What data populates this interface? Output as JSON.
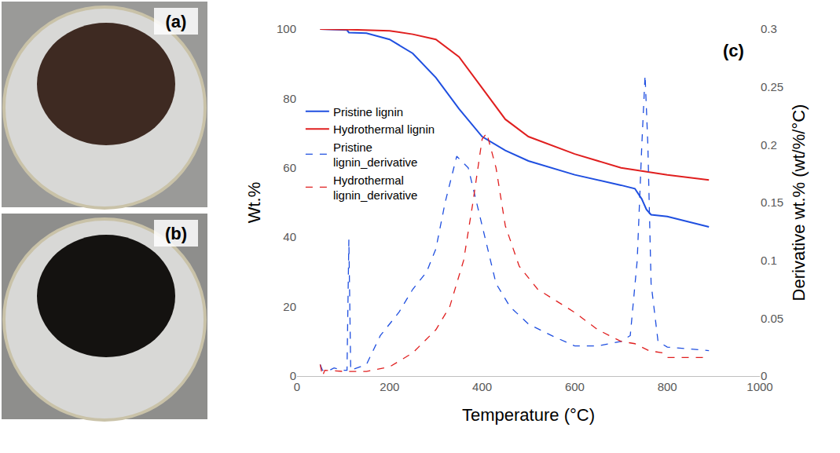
{
  "panels": [
    {
      "label": "(a)"
    },
    {
      "label": "(b)"
    }
  ],
  "chart_data": {
    "type": "line",
    "annotations": [
      "(c)"
    ],
    "x_label": "Temperature (°C)",
    "y_label": "Wt.%",
    "y2_label": "Derivative wt.% (wt/%/°C)",
    "xlim": [
      0,
      1000
    ],
    "xticks": [
      0,
      200,
      400,
      600,
      800,
      1000
    ],
    "ylim": [
      0,
      100
    ],
    "yticks": [
      0,
      20,
      40,
      60,
      80,
      100
    ],
    "y2lim": [
      0,
      0.3
    ],
    "y2ticks": [
      0,
      0.05,
      0.1,
      0.15,
      0.2,
      0.25,
      0.3
    ],
    "grid": false,
    "legend": "left",
    "series": [
      {
        "name": "Pristine lignin",
        "color": "#1f4fe0",
        "line_style": "solid",
        "x": [
          50,
          100,
          108,
          112,
          150,
          200,
          250,
          300,
          350,
          400,
          450,
          500,
          600,
          700,
          730,
          745,
          755,
          765,
          800,
          890
        ],
        "values": [
          100,
          99.8,
          99.7,
          99,
          98.8,
          97,
          93,
          86,
          77,
          69,
          65,
          62,
          58,
          55,
          54,
          51,
          48,
          46.5,
          46,
          43
        ]
      },
      {
        "name": "Hydrothermal lignin",
        "color": "#e01f1f",
        "line_style": "solid",
        "x": [
          50,
          100,
          200,
          250,
          300,
          350,
          400,
          450,
          500,
          600,
          700,
          800,
          890
        ],
        "values": [
          100,
          99.9,
          99.5,
          98.5,
          97,
          92,
          83,
          74,
          69,
          64,
          60,
          58,
          56.5
        ]
      },
      {
        "name": "Pristine lignin_derivative",
        "color": "#1f4fe0",
        "line_style": "dashed",
        "axis": "y2",
        "x": [
          50,
          55,
          70,
          80,
          100,
          108,
          112,
          116,
          150,
          180,
          220,
          250,
          280,
          300,
          320,
          345,
          370,
          400,
          430,
          460,
          500,
          550,
          600,
          650,
          700,
          720,
          735,
          745,
          752,
          758,
          765,
          780,
          800,
          890
        ],
        "values": [
          0.01,
          0.005,
          0.005,
          0.007,
          0.005,
          0.005,
          0.118,
          0.005,
          0.01,
          0.035,
          0.055,
          0.075,
          0.09,
          0.11,
          0.15,
          0.19,
          0.18,
          0.13,
          0.08,
          0.06,
          0.045,
          0.035,
          0.026,
          0.026,
          0.03,
          0.035,
          0.1,
          0.2,
          0.26,
          0.2,
          0.08,
          0.03,
          0.025,
          0.022
        ]
      },
      {
        "name": "Hydrothermal lignin_derivative",
        "color": "#e01f1f",
        "line_style": "dashed",
        "axis": "y2",
        "x": [
          50,
          55,
          60,
          100,
          150,
          200,
          250,
          300,
          330,
          360,
          380,
          400,
          410,
          430,
          450,
          480,
          520,
          560,
          600,
          650,
          700,
          730,
          760,
          790,
          800,
          890
        ],
        "values": [
          0.01,
          0.0,
          0.005,
          0.004,
          0.004,
          0.008,
          0.02,
          0.04,
          0.06,
          0.1,
          0.15,
          0.205,
          0.21,
          0.18,
          0.13,
          0.095,
          0.075,
          0.065,
          0.055,
          0.04,
          0.03,
          0.028,
          0.022,
          0.02,
          0.016,
          0.016
        ]
      }
    ]
  }
}
